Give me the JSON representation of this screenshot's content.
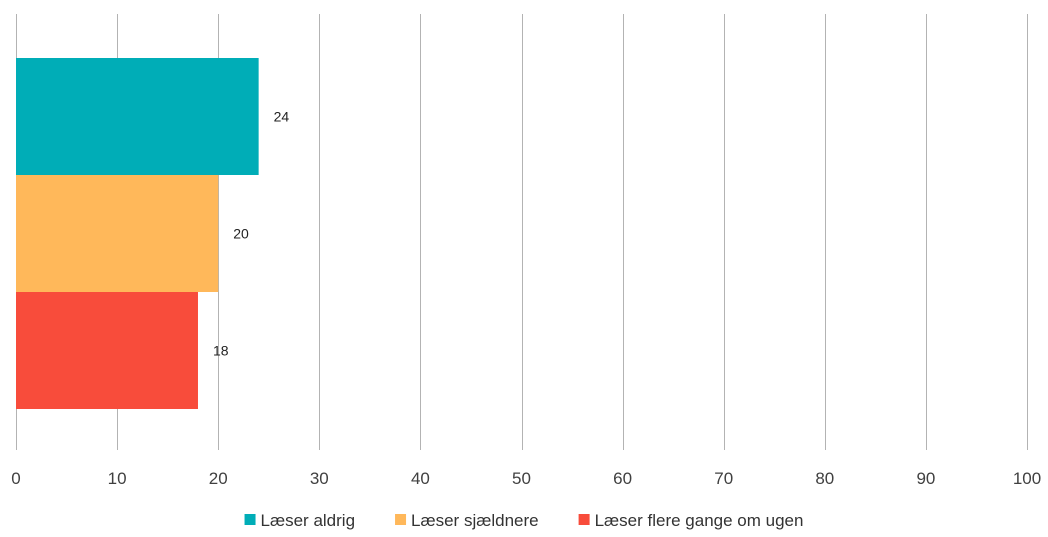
{
  "chart_data": {
    "type": "bar",
    "orientation": "horizontal",
    "title": "",
    "xlabel": "",
    "ylabel": "",
    "xlim": [
      0,
      100
    ],
    "x_ticks": [
      "0",
      "10",
      "20",
      "30",
      "40",
      "50",
      "60",
      "70",
      "80",
      "90",
      "100"
    ],
    "grid": true,
    "legend_position": "bottom",
    "series": [
      {
        "name": "Læser aldrig",
        "value": 24,
        "label": "24",
        "color": "#00ADB7"
      },
      {
        "name": "Læser sjældnere",
        "value": 20,
        "label": "20",
        "color": "#FFB85A"
      },
      {
        "name": "Læser flere gange om ugen",
        "value": 18,
        "label": "18",
        "color": "#F84C3B"
      }
    ]
  }
}
